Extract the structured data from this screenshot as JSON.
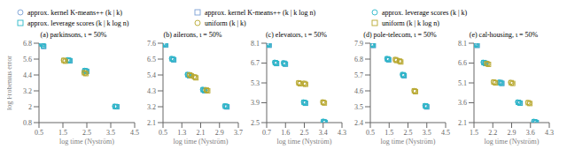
{
  "chart_data": [
    {
      "type": "scatter",
      "title": "(a) parkinsons, ι = 50%",
      "x_label": "log time (Nyström)",
      "y_label": "log Frobenius error",
      "grid": false,
      "xlim": [
        0.5,
        4.5
      ],
      "ylim": [
        0.8,
        6.8
      ],
      "xticks": [
        0.5,
        1.5,
        2.5,
        3.5,
        4.5
      ],
      "yticks": [
        0.8,
        2.0,
        3.2,
        4.4,
        5.6,
        6.8
      ],
      "series": [
        {
          "name": "approx. kernel K-means++ (k | k)",
          "color": "#7b9fd4",
          "marker": "circle",
          "x": [
            0.62,
            0.68,
            1.72,
            1.78,
            2.42,
            2.48,
            3.68,
            3.74
          ],
          "y": [
            6.75,
            6.58,
            5.52,
            5.48,
            4.72,
            4.68,
            2.02,
            2.0
          ]
        },
        {
          "name": "approx. kernel K-means++ (k | k log n)",
          "color": "#7b9fd4",
          "marker": "square",
          "x": [
            0.64,
            0.7,
            1.74,
            1.8,
            2.44,
            2.5,
            3.7,
            3.76
          ],
          "y": [
            6.72,
            6.55,
            5.5,
            5.46,
            4.7,
            4.66,
            2.01,
            1.99
          ]
        },
        {
          "name": "approx. leverage scores (k | k)",
          "color": "#2ab8c8",
          "marker": "circle",
          "x": [
            0.6,
            0.66,
            1.7,
            1.76,
            2.4,
            2.46,
            3.66,
            3.72
          ],
          "y": [
            6.78,
            6.62,
            5.55,
            5.5,
            4.75,
            4.7,
            2.03,
            2.01
          ]
        },
        {
          "name": "approx. leverage scores (k | k log n)",
          "color": "#2ab8c8",
          "marker": "square",
          "x": [
            0.63,
            0.69,
            1.73,
            1.79,
            2.43,
            2.49,
            3.69,
            3.75
          ],
          "y": [
            6.74,
            6.58,
            5.52,
            5.48,
            4.72,
            4.68,
            2.02,
            2.0
          ]
        },
        {
          "name": "uniform (k | k)",
          "color": "#b8a830",
          "marker": "circle",
          "x": [
            1.52,
            1.58,
            2.38,
            2.44
          ],
          "y": [
            5.52,
            5.46,
            4.58,
            4.52
          ]
        },
        {
          "name": "uniform (k | k log n)",
          "color": "#b8a830",
          "marker": "square",
          "x": [
            1.54,
            1.6,
            2.4,
            2.46
          ],
          "y": [
            5.5,
            5.44,
            4.56,
            4.5
          ]
        }
      ]
    },
    {
      "type": "scatter",
      "title": "(b) ailerons, ι = 50%",
      "x_label": "log time (Nyström)",
      "grid": false,
      "xlim": [
        0.5,
        3.7
      ],
      "ylim": [
        2.1,
        7.6
      ],
      "xticks": [
        0.5,
        1.3,
        2.1,
        2.9,
        3.7
      ],
      "yticks": [
        2.1,
        3.2,
        4.3,
        5.4,
        6.5,
        7.6
      ],
      "series": [
        {
          "name": "approx. kernel K-means++ (k | k)",
          "color": "#7b9fd4",
          "marker": "circle",
          "x": [
            0.54,
            0.6,
            0.88,
            0.94,
            1.55,
            1.61,
            2.2,
            2.26,
            3.14,
            3.2
          ],
          "y": [
            7.58,
            7.5,
            6.52,
            6.46,
            5.42,
            5.36,
            4.38,
            4.32,
            3.24,
            3.2
          ]
        },
        {
          "name": "approx. kernel K-means++ (k | k log n)",
          "color": "#7b9fd4",
          "marker": "square",
          "x": [
            0.56,
            0.62,
            0.9,
            0.96,
            1.57,
            1.63,
            2.22,
            2.28,
            3.16,
            3.22
          ],
          "y": [
            7.55,
            7.47,
            6.5,
            6.44,
            5.4,
            5.34,
            4.36,
            4.3,
            3.22,
            3.18
          ]
        },
        {
          "name": "approx. leverage scores (k | k)",
          "color": "#2ab8c8",
          "marker": "circle",
          "x": [
            0.52,
            0.58,
            0.86,
            0.92,
            1.53,
            1.59,
            2.18,
            2.24,
            3.12,
            3.18
          ],
          "y": [
            7.6,
            7.52,
            6.54,
            6.48,
            5.44,
            5.38,
            4.4,
            4.34,
            3.26,
            3.22
          ]
        },
        {
          "name": "approx. leverage scores (k | k log n)",
          "color": "#2ab8c8",
          "marker": "square",
          "x": [
            0.55,
            0.61,
            0.89,
            0.95,
            1.56,
            1.62,
            2.21,
            2.27,
            3.15,
            3.21
          ],
          "y": [
            7.57,
            7.49,
            6.52,
            6.46,
            5.42,
            5.36,
            4.38,
            4.32,
            3.24,
            3.2
          ]
        },
        {
          "name": "uniform (k | k)",
          "color": "#b8a830",
          "marker": "circle",
          "x": [
            1.62,
            1.68,
            1.82,
            1.88,
            2.32,
            2.38
          ],
          "y": [
            5.42,
            5.36,
            5.28,
            5.22,
            4.38,
            4.32
          ]
        },
        {
          "name": "uniform (k | k log n)",
          "color": "#b8a830",
          "marker": "square",
          "x": [
            1.64,
            1.7,
            1.84,
            1.9,
            2.34,
            2.4
          ],
          "y": [
            5.4,
            5.34,
            5.26,
            5.2,
            4.36,
            4.3
          ]
        }
      ]
    },
    {
      "type": "scatter",
      "title": "(c) elevators, ι = 50%",
      "x_label": "log time (Nyström)",
      "grid": false,
      "xlim": [
        0.7,
        4.3
      ],
      "ylim": [
        2.5,
        8.1
      ],
      "xticks": [
        0.7,
        1.6,
        2.5,
        3.4,
        4.3
      ],
      "yticks": [
        2.5,
        3.9,
        5.3,
        6.7,
        8.1
      ],
      "series": [
        {
          "name": "approx. kernel K-means++ (k | k)",
          "color": "#7b9fd4",
          "marker": "circle",
          "x": [
            0.74,
            0.8,
            1.1,
            1.16,
            1.52,
            1.58,
            2.48,
            2.54,
            3.42,
            3.48
          ],
          "y": [
            8.06,
            7.98,
            6.74,
            6.68,
            6.7,
            6.64,
            3.94,
            3.88,
            2.58,
            2.52
          ]
        },
        {
          "name": "approx. kernel K-means++ (k | k log n)",
          "color": "#7b9fd4",
          "marker": "square",
          "x": [
            0.76,
            0.82,
            1.12,
            1.18,
            1.54,
            1.6,
            2.5,
            2.56,
            3.44,
            3.5
          ],
          "y": [
            8.03,
            7.95,
            6.72,
            6.66,
            6.68,
            6.62,
            3.92,
            3.86,
            2.56,
            2.5
          ]
        },
        {
          "name": "approx. leverage scores (k | k)",
          "color": "#2ab8c8",
          "marker": "circle",
          "x": [
            0.72,
            0.78,
            1.08,
            1.14,
            1.5,
            1.56,
            2.46,
            2.52,
            3.4,
            3.46
          ],
          "y": [
            8.08,
            8.0,
            6.76,
            6.7,
            6.72,
            6.66,
            3.96,
            3.9,
            2.6,
            2.54
          ]
        },
        {
          "name": "approx. leverage scores (k | k log n)",
          "color": "#2ab8c8",
          "marker": "square",
          "x": [
            0.75,
            0.81,
            1.11,
            1.17,
            1.53,
            1.59,
            2.49,
            2.55,
            3.43,
            3.49
          ],
          "y": [
            8.05,
            7.97,
            6.73,
            6.67,
            6.69,
            6.63,
            3.93,
            3.87,
            2.57,
            2.51
          ]
        },
        {
          "name": "uniform (k | k)",
          "color": "#b8a830",
          "marker": "circle",
          "x": [
            2.22,
            2.28,
            2.48,
            2.54,
            3.38,
            3.44
          ],
          "y": [
            5.32,
            5.26,
            5.28,
            5.22,
            3.96,
            3.9
          ]
        },
        {
          "name": "uniform (k | k log n)",
          "color": "#b8a830",
          "marker": "square",
          "x": [
            2.24,
            2.3,
            2.5,
            2.56,
            3.4,
            3.46
          ],
          "y": [
            5.3,
            5.24,
            5.26,
            5.2,
            3.94,
            3.88
          ]
        }
      ]
    },
    {
      "type": "scatter",
      "title": "(d) pole-telecom, ι = 50%",
      "x_label": "log time (Nyström)",
      "grid": false,
      "xlim": [
        0.5,
        4.5
      ],
      "ylim": [
        2.4,
        7.9
      ],
      "xticks": [
        0.5,
        1.5,
        2.5,
        3.5,
        4.5
      ],
      "yticks": [
        2.4,
        3.5,
        4.6,
        5.7,
        6.8,
        7.9
      ],
      "series": [
        {
          "name": "approx. kernel K-means++ (k | k)",
          "color": "#7b9fd4",
          "marker": "circle",
          "x": [
            0.58,
            0.64,
            1.4,
            1.46,
            2.22,
            2.28,
            3.42,
            3.48
          ],
          "y": [
            7.82,
            7.76,
            6.82,
            6.76,
            5.72,
            5.66,
            3.56,
            3.5
          ]
        },
        {
          "name": "approx. kernel K-means++ (k | k log n)",
          "color": "#7b9fd4",
          "marker": "square",
          "x": [
            0.6,
            0.66,
            1.42,
            1.48,
            2.24,
            2.3,
            3.44,
            3.5
          ],
          "y": [
            7.8,
            7.74,
            6.8,
            6.74,
            5.7,
            5.64,
            3.54,
            3.48
          ]
        },
        {
          "name": "approx. leverage scores (k | k)",
          "color": "#2ab8c8",
          "marker": "circle",
          "x": [
            0.56,
            0.62,
            1.38,
            1.44,
            2.2,
            2.26,
            3.4,
            3.46
          ],
          "y": [
            7.84,
            7.78,
            6.84,
            6.78,
            5.74,
            5.68,
            3.58,
            3.52
          ]
        },
        {
          "name": "approx. leverage scores (k | k log n)",
          "color": "#2ab8c8",
          "marker": "square",
          "x": [
            0.59,
            0.65,
            1.41,
            1.47,
            2.23,
            2.29,
            3.43,
            3.49
          ],
          "y": [
            7.82,
            7.76,
            6.82,
            6.76,
            5.72,
            5.66,
            3.56,
            3.5
          ]
        },
        {
          "name": "uniform (k | k)",
          "color": "#b8a830",
          "marker": "circle",
          "x": [
            1.82,
            1.88,
            2.04,
            2.1,
            2.82,
            2.88
          ],
          "y": [
            6.78,
            6.72,
            6.68,
            6.62,
            4.62,
            4.56
          ]
        },
        {
          "name": "uniform (k | k log n)",
          "color": "#b8a830",
          "marker": "square",
          "x": [
            1.84,
            1.9,
            2.06,
            2.12,
            2.84,
            2.9
          ],
          "y": [
            6.76,
            6.7,
            6.66,
            6.6,
            4.6,
            4.54
          ]
        }
      ]
    },
    {
      "type": "scatter",
      "title": "(e) cal-housing, ι = 50%",
      "x_label": "log time (Nyström)",
      "grid": false,
      "xlim": [
        1.5,
        4.3
      ],
      "ylim": [
        2.1,
        8.1
      ],
      "xticks": [
        1.5,
        2.2,
        2.9,
        3.6,
        4.3
      ],
      "yticks": [
        2.1,
        3.6,
        5.1,
        6.6,
        8.1
      ],
      "series": [
        {
          "name": "approx. kernel K-means++ (k | k)",
          "color": "#7b9fd4",
          "marker": "circle",
          "x": [
            1.54,
            1.6,
            1.86,
            1.92,
            2.46,
            2.52,
            3.14,
            3.2,
            3.74,
            3.8
          ],
          "y": [
            8.04,
            7.96,
            6.64,
            6.58,
            5.14,
            5.08,
            3.64,
            3.58,
            2.18,
            2.12
          ]
        },
        {
          "name": "approx. kernel K-means++ (k | k log n)",
          "color": "#7b9fd4",
          "marker": "square",
          "x": [
            1.56,
            1.62,
            1.88,
            1.94,
            2.48,
            2.54,
            3.16,
            3.22,
            3.76,
            3.82
          ],
          "y": [
            8.01,
            7.93,
            6.62,
            6.56,
            5.12,
            5.06,
            3.62,
            3.56,
            2.16,
            2.1
          ]
        },
        {
          "name": "approx. leverage scores (k | k)",
          "color": "#2ab8c8",
          "marker": "circle",
          "x": [
            1.52,
            1.58,
            1.84,
            1.9,
            2.44,
            2.5,
            3.12,
            3.18,
            3.72,
            3.78
          ],
          "y": [
            8.06,
            7.98,
            6.66,
            6.6,
            5.16,
            5.1,
            3.66,
            3.6,
            2.2,
            2.14
          ]
        },
        {
          "name": "approx. leverage scores (k | k log n)",
          "color": "#2ab8c8",
          "marker": "square",
          "x": [
            1.55,
            1.61,
            1.87,
            1.93,
            2.47,
            2.53,
            3.15,
            3.21,
            3.75,
            3.81
          ],
          "y": [
            8.03,
            7.95,
            6.64,
            6.58,
            5.13,
            5.07,
            3.63,
            3.57,
            2.17,
            2.11
          ]
        },
        {
          "name": "uniform (k | k)",
          "color": "#b8a830",
          "marker": "circle",
          "x": [
            1.96,
            2.02,
            2.22,
            2.28,
            2.86,
            2.92,
            3.5,
            3.56
          ],
          "y": [
            6.58,
            6.52,
            5.18,
            5.12,
            5.14,
            5.08,
            3.62,
            3.56
          ]
        },
        {
          "name": "uniform (k | k log n)",
          "color": "#b8a830",
          "marker": "square",
          "x": [
            1.98,
            2.04,
            2.24,
            2.3,
            2.88,
            2.94,
            3.52,
            3.58
          ],
          "y": [
            6.56,
            6.5,
            5.16,
            5.1,
            5.12,
            5.06,
            3.6,
            3.54
          ]
        }
      ]
    }
  ]
}
